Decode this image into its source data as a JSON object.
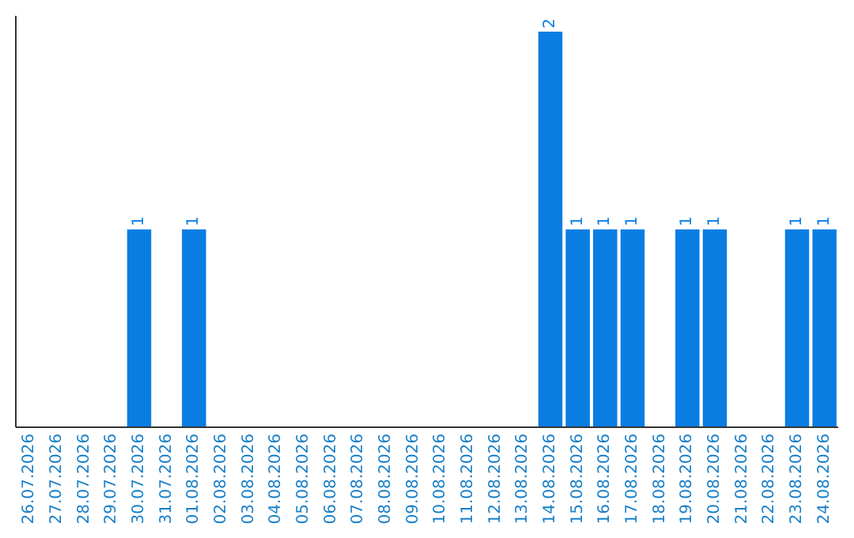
{
  "chart_data": {
    "type": "bar",
    "categories": [
      "26.07.2026",
      "27.07.2026",
      "28.07.2026",
      "29.07.2026",
      "30.07.2026",
      "31.07.2026",
      "01.08.2026",
      "02.08.2026",
      "03.08.2026",
      "04.08.2026",
      "05.08.2026",
      "06.08.2026",
      "07.08.2026",
      "08.08.2026",
      "09.08.2026",
      "10.08.2026",
      "11.08.2026",
      "12.08.2026",
      "13.08.2026",
      "14.08.2026",
      "15.08.2026",
      "16.08.2026",
      "17.08.2026",
      "18.08.2026",
      "19.08.2026",
      "20.08.2026",
      "21.08.2026",
      "22.08.2026",
      "23.08.2026",
      "24.08.2026"
    ],
    "values": [
      0,
      0,
      0,
      0,
      1,
      0,
      1,
      0,
      0,
      0,
      0,
      0,
      0,
      0,
      0,
      0,
      0,
      0,
      0,
      2,
      1,
      1,
      1,
      0,
      1,
      1,
      0,
      0,
      1,
      1
    ],
    "value_labels": [
      null,
      null,
      null,
      null,
      "1",
      null,
      "1",
      null,
      null,
      null,
      null,
      null,
      null,
      null,
      null,
      null,
      null,
      null,
      null,
      "2",
      "1",
      "1",
      "1",
      null,
      "1",
      "1",
      null,
      null,
      "1",
      "1"
    ],
    "color": "#0a7de3",
    "tick_labels": "x"
  }
}
